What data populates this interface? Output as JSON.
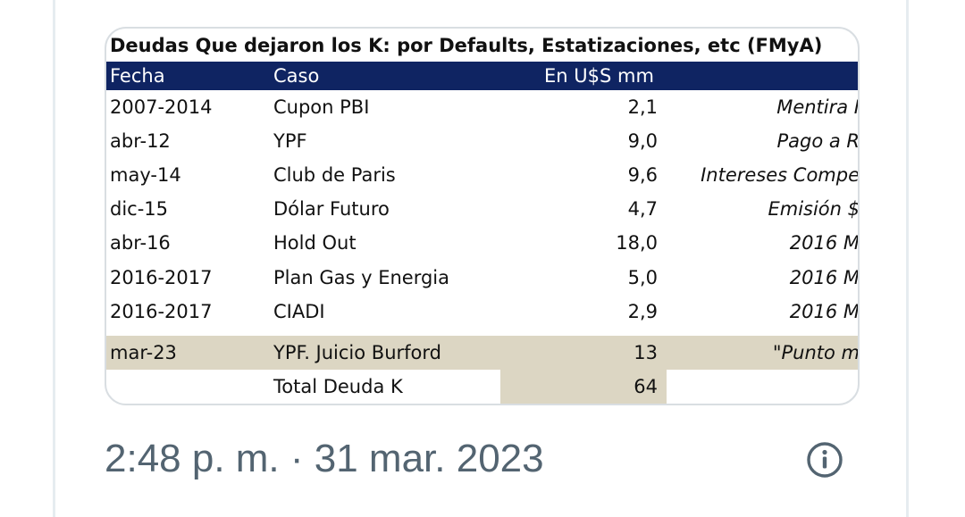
{
  "sheet": {
    "title": "Deudas Que dejaron los K: por Defaults, Estatizaciones, etc (FMyA)",
    "headers": {
      "fecha": "Fecha",
      "caso": "Caso",
      "valor": "En U$S mm"
    },
    "rows": [
      {
        "fecha": "2007-2014",
        "caso": "Cupon PBI",
        "valor": "2,1",
        "nota": "Mentira I"
      },
      {
        "fecha": "abr-12",
        "caso": "YPF",
        "valor": "9,0",
        "nota": "Pago a R"
      },
      {
        "fecha": "may-14",
        "caso": "Club de Paris",
        "valor": "9,6",
        "nota": "Intereses Compe"
      },
      {
        "fecha": "dic-15",
        "caso": "Dólar Futuro",
        "valor": "4,7",
        "nota": "Emisión $"
      },
      {
        "fecha": "abr-16",
        "caso": "Hold Out",
        "valor": "18,0",
        "nota": "2016 M"
      },
      {
        "fecha": "2016-2017",
        "caso": "Plan Gas y Energia",
        "valor": "5,0",
        "nota": "2016 M"
      },
      {
        "fecha": "2016-2017",
        "caso": "CIADI",
        "valor": "2,9",
        "nota": "2016 M"
      },
      {
        "fecha": "mar-23",
        "caso": "YPF. Juicio Burford",
        "valor": "13",
        "nota": "\"Punto m"
      }
    ],
    "total": {
      "label": "Total Deuda K",
      "valor": "64"
    }
  },
  "tweet": {
    "timestamp": "2:48 p. m. · 31 mar. 2023"
  },
  "colors": {
    "header_bg": "#0f2462",
    "highlight_bg": "#dcd6c3",
    "meta_text": "#536471"
  },
  "icons": {
    "info": "info-circle-icon"
  }
}
